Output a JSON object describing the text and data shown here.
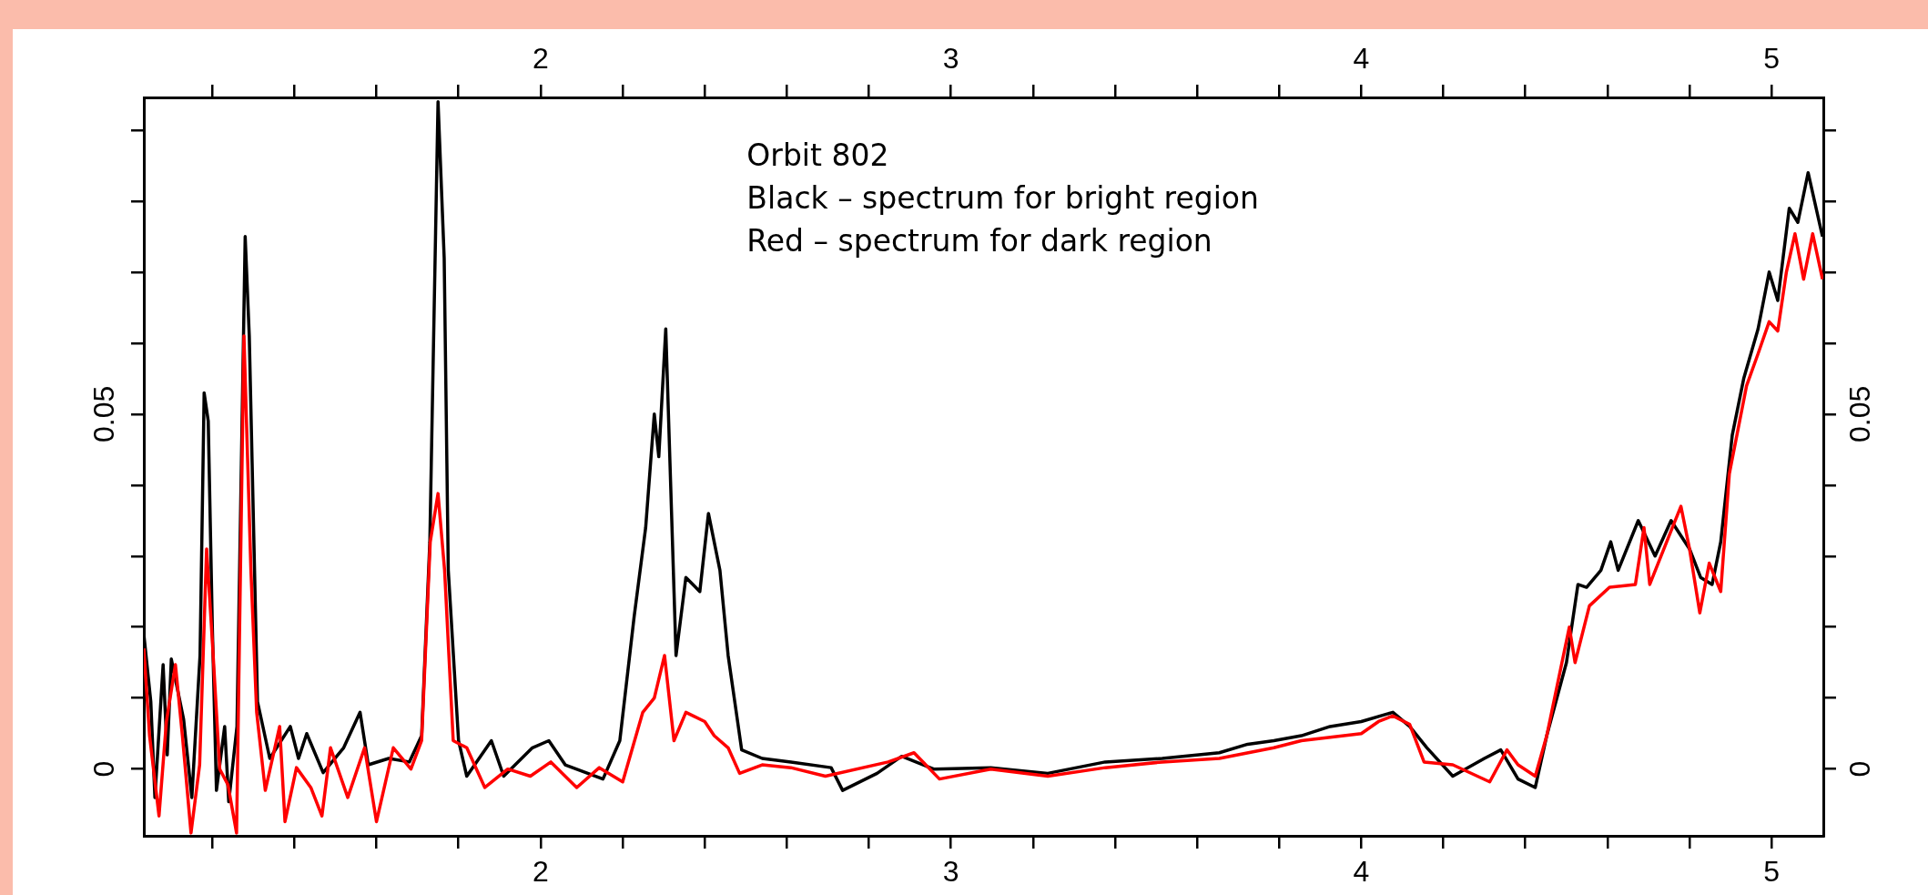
{
  "chart_data": {
    "type": "line",
    "annotations": [
      "Orbit 802",
      "Black – spectrum for bright region",
      "Red – spectrum for dark region"
    ],
    "xlim": [
      1.033,
      5.126
    ],
    "xticks": [
      {
        "value": 1.2,
        "label": null
      },
      {
        "value": 1.4,
        "label": null
      },
      {
        "value": 1.6,
        "label": null
      },
      {
        "value": 1.8,
        "label": null
      },
      2,
      {
        "value": 2.2,
        "label": null
      },
      {
        "value": 2.4,
        "label": null
      },
      {
        "value": 2.6,
        "label": null
      },
      {
        "value": 2.8,
        "label": null
      },
      3,
      {
        "value": 3.2,
        "label": null
      },
      {
        "value": 3.4,
        "label": null
      },
      {
        "value": 3.6,
        "label": null
      },
      {
        "value": 3.8,
        "label": null
      },
      4,
      {
        "value": 4.2,
        "label": null
      },
      {
        "value": 4.4,
        "label": null
      },
      {
        "value": 4.6,
        "label": null
      },
      {
        "value": 4.8,
        "label": null
      },
      5
    ],
    "x2lim": [
      1.033,
      5.126
    ],
    "x2ticks": [
      {
        "value": 1.2,
        "label": null
      },
      {
        "value": 1.4,
        "label": null
      },
      {
        "value": 1.6,
        "label": null
      },
      {
        "value": 1.8,
        "label": null
      },
      2,
      {
        "value": 2.2,
        "label": null
      },
      {
        "value": 2.4,
        "label": null
      },
      {
        "value": 2.6,
        "label": null
      },
      {
        "value": 2.8,
        "label": null
      },
      3,
      {
        "value": 3.2,
        "label": null
      },
      {
        "value": 3.4,
        "label": null
      },
      {
        "value": 3.6,
        "label": null
      },
      {
        "value": 3.8,
        "label": null
      },
      4,
      {
        "value": 4.2,
        "label": null
      },
      {
        "value": 4.4,
        "label": null
      },
      {
        "value": 4.6,
        "label": null
      },
      {
        "value": 4.8,
        "label": null
      },
      5
    ],
    "ylim": [
      -0.0094,
      0.0946
    ],
    "yticks": [
      0,
      {
        "value": 0.01,
        "label": null
      },
      {
        "value": 0.02,
        "label": null
      },
      {
        "value": 0.03,
        "label": null
      },
      {
        "value": 0.04,
        "label": null
      },
      0.05,
      {
        "value": 0.06,
        "label": null
      },
      {
        "value": 0.07,
        "label": null
      },
      {
        "value": 0.08,
        "label": null
      },
      {
        "value": 0.09,
        "label": null
      }
    ],
    "y2lim": [
      -0.0094,
      0.0946
    ],
    "y2ticks": [
      0,
      {
        "value": 0.01,
        "label": null
      },
      {
        "value": 0.02,
        "label": null
      },
      {
        "value": 0.03,
        "label": null
      },
      {
        "value": 0.04,
        "label": null
      },
      0.05,
      {
        "value": 0.06,
        "label": null
      },
      {
        "value": 0.07,
        "label": null
      },
      {
        "value": 0.08,
        "label": null
      },
      {
        "value": 0.09,
        "label": null
      }
    ],
    "grid": false,
    "legend": false,
    "marker": "none",
    "line_style": "solid",
    "series": [
      {
        "color": "#000000",
        "x": [
          1.033,
          1.05,
          1.06,
          1.08,
          1.09,
          1.1,
          1.13,
          1.15,
          1.17,
          1.18,
          1.19,
          1.2,
          1.21,
          1.23,
          1.24,
          1.26,
          1.28,
          1.29,
          1.31,
          1.34,
          1.39,
          1.41,
          1.43,
          1.47,
          1.52,
          1.56,
          1.58,
          1.63,
          1.68,
          1.71,
          1.73,
          1.75,
          1.765,
          1.775,
          1.8,
          1.82,
          1.88,
          1.91,
          1.98,
          2.02,
          2.06,
          2.152,
          2.193,
          2.228,
          2.256,
          2.277,
          2.288,
          2.305,
          2.33,
          2.354,
          2.388,
          2.409,
          2.437,
          2.457,
          2.49,
          2.54,
          2.61,
          2.708,
          2.736,
          2.82,
          2.88,
          2.958,
          3.097,
          3.236,
          3.376,
          3.515,
          3.654,
          3.723,
          3.787,
          3.854,
          3.924,
          4.0,
          4.077,
          4.118,
          4.16,
          4.223,
          4.3,
          4.34,
          4.382,
          4.424,
          4.452,
          4.5,
          4.528,
          4.549,
          4.584,
          4.608,
          4.626,
          4.675,
          4.716,
          4.755,
          4.8,
          4.827,
          4.855,
          4.876,
          4.904,
          4.932,
          4.967,
          4.994,
          5.015,
          5.043,
          5.064,
          5.089,
          5.124
        ],
        "values": [
          0.019,
          0.0095,
          -0.004,
          0.0147,
          0.002,
          0.0155,
          0.007,
          -0.004,
          0.016,
          0.053,
          0.049,
          0.02,
          -0.003,
          0.006,
          -0.0046,
          0.006,
          0.075,
          0.061,
          0.0095,
          0.0015,
          0.006,
          0.0015,
          0.005,
          -0.0005,
          0.003,
          0.008,
          0.0006,
          0.0015,
          0.001,
          0.0047,
          0.032,
          0.094,
          0.072,
          0.028,
          0.004,
          -0.001,
          0.004,
          -0.001,
          0.003,
          0.004,
          0.0006,
          -0.0014,
          0.004,
          0.0215,
          0.034,
          0.05,
          0.044,
          0.062,
          0.016,
          0.027,
          0.025,
          0.036,
          0.028,
          0.016,
          0.0027,
          0.0015,
          0.001,
          0.0002,
          -0.003,
          -0.0006,
          0.0018,
          0,
          0.0002,
          -0.0006,
          0.001,
          0.0015,
          0.0023,
          0.0035,
          0.004,
          0.0047,
          0.006,
          0.0067,
          0.008,
          0.006,
          0.003,
          -0.001,
          0.0015,
          0.0027,
          -0.0014,
          -0.0026,
          0.0047,
          0.015,
          0.026,
          0.0256,
          0.028,
          0.032,
          0.028,
          0.035,
          0.03,
          0.035,
          0.031,
          0.027,
          0.026,
          0.032,
          0.047,
          0.055,
          0.062,
          0.07,
          0.066,
          0.079,
          0.077,
          0.084,
          0.075
        ]
      },
      {
        "color": "#ff0000",
        "x": [
          1.033,
          1.047,
          1.07,
          1.088,
          1.11,
          1.127,
          1.148,
          1.169,
          1.186,
          1.2,
          1.218,
          1.238,
          1.259,
          1.277,
          1.294,
          1.308,
          1.329,
          1.364,
          1.377,
          1.405,
          1.44,
          1.467,
          1.488,
          1.53,
          1.571,
          1.6,
          1.641,
          1.684,
          1.71,
          1.731,
          1.75,
          1.766,
          1.787,
          1.82,
          1.864,
          1.92,
          1.975,
          2.025,
          2.088,
          2.143,
          2.2,
          2.249,
          2.277,
          2.302,
          2.325,
          2.354,
          2.4,
          2.423,
          2.457,
          2.485,
          2.54,
          2.61,
          2.694,
          2.847,
          2.91,
          2.972,
          3.097,
          3.236,
          3.376,
          3.515,
          3.654,
          3.787,
          3.854,
          4.0,
          4.042,
          4.077,
          4.118,
          4.153,
          4.223,
          4.313,
          4.355,
          4.382,
          4.424,
          4.452,
          4.507,
          4.521,
          4.556,
          4.605,
          4.668,
          4.689,
          4.703,
          4.758,
          4.779,
          4.8,
          4.825,
          4.848,
          4.876,
          4.897,
          4.939,
          4.967,
          4.994,
          5.015,
          5.036,
          5.057,
          5.078,
          5.1,
          5.124
        ],
        "values": [
          0.017,
          0.0047,
          -0.0066,
          0.0067,
          0.0147,
          0.0047,
          -0.009,
          0.0006,
          0.031,
          0.018,
          0,
          -0.0022,
          -0.009,
          0.061,
          0.028,
          0.008,
          -0.003,
          0.006,
          -0.0074,
          0.0002,
          -0.0026,
          -0.0066,
          0.003,
          -0.004,
          0.003,
          -0.0074,
          0.003,
          0,
          0.004,
          0.032,
          0.0388,
          0.028,
          0.004,
          0.003,
          -0.0026,
          0,
          -0.001,
          0.001,
          -0.0026,
          0.0002,
          -0.0018,
          0.008,
          0.01,
          0.016,
          0.004,
          0.008,
          0.0067,
          0.0047,
          0.003,
          -0.0006,
          0.0006,
          0.0002,
          -0.001,
          0.001,
          0.0023,
          -0.0014,
          0,
          -0.001,
          0.0002,
          0.001,
          0.0015,
          0.003,
          0.004,
          0.005,
          0.0067,
          0.0075,
          0.0063,
          0.001,
          0.0006,
          -0.0018,
          0.0027,
          0.0006,
          -0.001,
          0.0047,
          0.02,
          0.015,
          0.023,
          0.0256,
          0.026,
          0.034,
          0.026,
          0.034,
          0.037,
          0.031,
          0.022,
          0.029,
          0.025,
          0.0416,
          0.054,
          0.0585,
          0.063,
          0.0617,
          0.07,
          0.0754,
          0.069,
          0.0754,
          0.069
        ]
      }
    ]
  }
}
